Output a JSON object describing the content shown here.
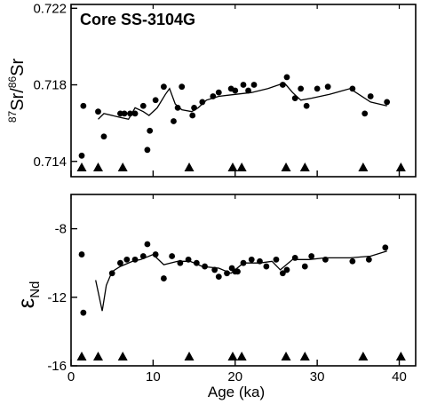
{
  "chart_data": [
    {
      "type": "scatter",
      "annotation": "Core SS-3104G",
      "ylabel_parts": {
        "sup1": "87",
        "base1": "Sr/",
        "sup2": "86",
        "base2": "Sr"
      },
      "ylim": [
        0.7132,
        0.7222
      ],
      "yticks": [
        {
          "value": 0.714,
          "label": "0.714"
        },
        {
          "value": 0.718,
          "label": "0.718"
        },
        {
          "value": 0.722,
          "label": "0.722"
        }
      ],
      "series": [
        {
          "kind": "points",
          "points": [
            [
              1.3,
              0.7143
            ],
            [
              1.5,
              0.7169
            ],
            [
              3.3,
              0.7166
            ],
            [
              4.0,
              0.7153
            ],
            [
              6.0,
              0.7165
            ],
            [
              6.5,
              0.7165
            ],
            [
              7.2,
              0.7165
            ],
            [
              7.8,
              0.7165
            ],
            [
              8.8,
              0.7169
            ],
            [
              9.3,
              0.7146
            ],
            [
              9.6,
              0.7156
            ],
            [
              10.3,
              0.7172
            ],
            [
              11.3,
              0.7179
            ],
            [
              12.5,
              0.7161
            ],
            [
              13.0,
              0.7168
            ],
            [
              13.5,
              0.7179
            ],
            [
              14.8,
              0.7164
            ],
            [
              15.0,
              0.7168
            ],
            [
              16.0,
              0.7171
            ],
            [
              17.3,
              0.7174
            ],
            [
              18.0,
              0.7176
            ],
            [
              19.5,
              0.7178
            ],
            [
              20.0,
              0.7177
            ],
            [
              21.0,
              0.718
            ],
            [
              21.6,
              0.7177
            ],
            [
              22.3,
              0.718
            ],
            [
              25.8,
              0.718
            ],
            [
              26.3,
              0.7184
            ],
            [
              27.3,
              0.7173
            ],
            [
              28.0,
              0.7178
            ],
            [
              28.7,
              0.7169
            ],
            [
              30.0,
              0.7178
            ],
            [
              31.3,
              0.7179
            ],
            [
              34.3,
              0.7178
            ],
            [
              35.8,
              0.7165
            ],
            [
              36.5,
              0.7174
            ],
            [
              38.5,
              0.7171
            ]
          ]
        },
        {
          "kind": "line",
          "points": [
            [
              3.3,
              0.7162
            ],
            [
              4.0,
              0.7165
            ],
            [
              6.0,
              0.7163
            ],
            [
              7.0,
              0.7162
            ],
            [
              7.8,
              0.7168
            ],
            [
              8.8,
              0.7166
            ],
            [
              9.5,
              0.7164
            ],
            [
              10.5,
              0.7168
            ],
            [
              11.5,
              0.7175
            ],
            [
              12.0,
              0.7178
            ],
            [
              12.7,
              0.717
            ],
            [
              13.5,
              0.7167
            ],
            [
              14.7,
              0.7166
            ],
            [
              15.5,
              0.7168
            ],
            [
              16.5,
              0.7172
            ],
            [
              18.0,
              0.7174
            ],
            [
              20.0,
              0.7175
            ],
            [
              22.0,
              0.7176
            ],
            [
              24.0,
              0.7178
            ],
            [
              26.0,
              0.7181
            ],
            [
              27.0,
              0.7176
            ],
            [
              28.0,
              0.7172
            ],
            [
              29.3,
              0.7173
            ],
            [
              31.5,
              0.7175
            ],
            [
              34.0,
              0.7178
            ],
            [
              36.5,
              0.7171
            ],
            [
              38.5,
              0.7169
            ]
          ]
        }
      ],
      "triangles_x": [
        1.3,
        3.3,
        6.3,
        14.4,
        19.7,
        20.8,
        26.2,
        28.5,
        35.6,
        40.2
      ]
    },
    {
      "type": "scatter",
      "ylabel_parts": {
        "base": "ε",
        "sub": "Nd"
      },
      "xlabel": "Age (ka)",
      "xlim": [
        0,
        42
      ],
      "ylim": [
        -16,
        -6
      ],
      "xticks": [
        {
          "value": 0,
          "label": "0"
        },
        {
          "value": 10,
          "label": "10"
        },
        {
          "value": 20,
          "label": "20"
        },
        {
          "value": 30,
          "label": "30"
        },
        {
          "value": 40,
          "label": "40"
        }
      ],
      "yticks": [
        {
          "value": -8,
          "label": "-8"
        },
        {
          "value": -12,
          "label": "-12"
        },
        {
          "value": -16,
          "label": "-16"
        }
      ],
      "series": [
        {
          "kind": "points",
          "points": [
            [
              1.3,
              -9.5
            ],
            [
              1.5,
              -12.9
            ],
            [
              5.0,
              -10.6
            ],
            [
              6.0,
              -10.0
            ],
            [
              6.8,
              -9.8
            ],
            [
              7.8,
              -9.8
            ],
            [
              8.8,
              -9.6
            ],
            [
              9.3,
              -8.9
            ],
            [
              10.3,
              -9.5
            ],
            [
              11.3,
              -10.9
            ],
            [
              12.3,
              -9.6
            ],
            [
              13.3,
              -10.0
            ],
            [
              14.3,
              -9.8
            ],
            [
              15.3,
              -10.0
            ],
            [
              16.3,
              -10.2
            ],
            [
              17.5,
              -10.4
            ],
            [
              18.0,
              -10.8
            ],
            [
              19.0,
              -10.6
            ],
            [
              19.6,
              -10.3
            ],
            [
              20.0,
              -10.5
            ],
            [
              20.3,
              -10.5
            ],
            [
              21.0,
              -10.0
            ],
            [
              22.0,
              -9.8
            ],
            [
              23.0,
              -9.9
            ],
            [
              23.8,
              -10.2
            ],
            [
              25.0,
              -9.8
            ],
            [
              25.8,
              -10.6
            ],
            [
              26.3,
              -10.4
            ],
            [
              27.3,
              -9.7
            ],
            [
              28.5,
              -10.2
            ],
            [
              29.3,
              -9.6
            ],
            [
              31.0,
              -9.8
            ],
            [
              34.3,
              -9.9
            ],
            [
              36.3,
              -9.8
            ],
            [
              38.3,
              -9.1
            ]
          ]
        },
        {
          "kind": "line",
          "points": [
            [
              3.0,
              -11.0
            ],
            [
              3.8,
              -12.8
            ],
            [
              4.3,
              -11.3
            ],
            [
              5.0,
              -10.5
            ],
            [
              6.0,
              -10.2
            ],
            [
              7.5,
              -9.9
            ],
            [
              8.5,
              -9.8
            ],
            [
              10.0,
              -9.5
            ],
            [
              11.3,
              -10.1
            ],
            [
              13.0,
              -9.9
            ],
            [
              14.5,
              -9.9
            ],
            [
              16.0,
              -10.2
            ],
            [
              18.0,
              -10.3
            ],
            [
              19.5,
              -10.6
            ],
            [
              21.0,
              -10.0
            ],
            [
              23.0,
              -10.0
            ],
            [
              24.5,
              -9.9
            ],
            [
              25.5,
              -10.4
            ],
            [
              27.0,
              -9.8
            ],
            [
              29.0,
              -9.8
            ],
            [
              31.0,
              -9.7
            ],
            [
              34.0,
              -9.7
            ],
            [
              36.5,
              -9.6
            ],
            [
              38.5,
              -9.3
            ]
          ]
        }
      ],
      "triangles_x": [
        1.3,
        3.3,
        6.3,
        14.4,
        19.7,
        20.8,
        26.2,
        28.5,
        35.6,
        40.2
      ]
    }
  ]
}
